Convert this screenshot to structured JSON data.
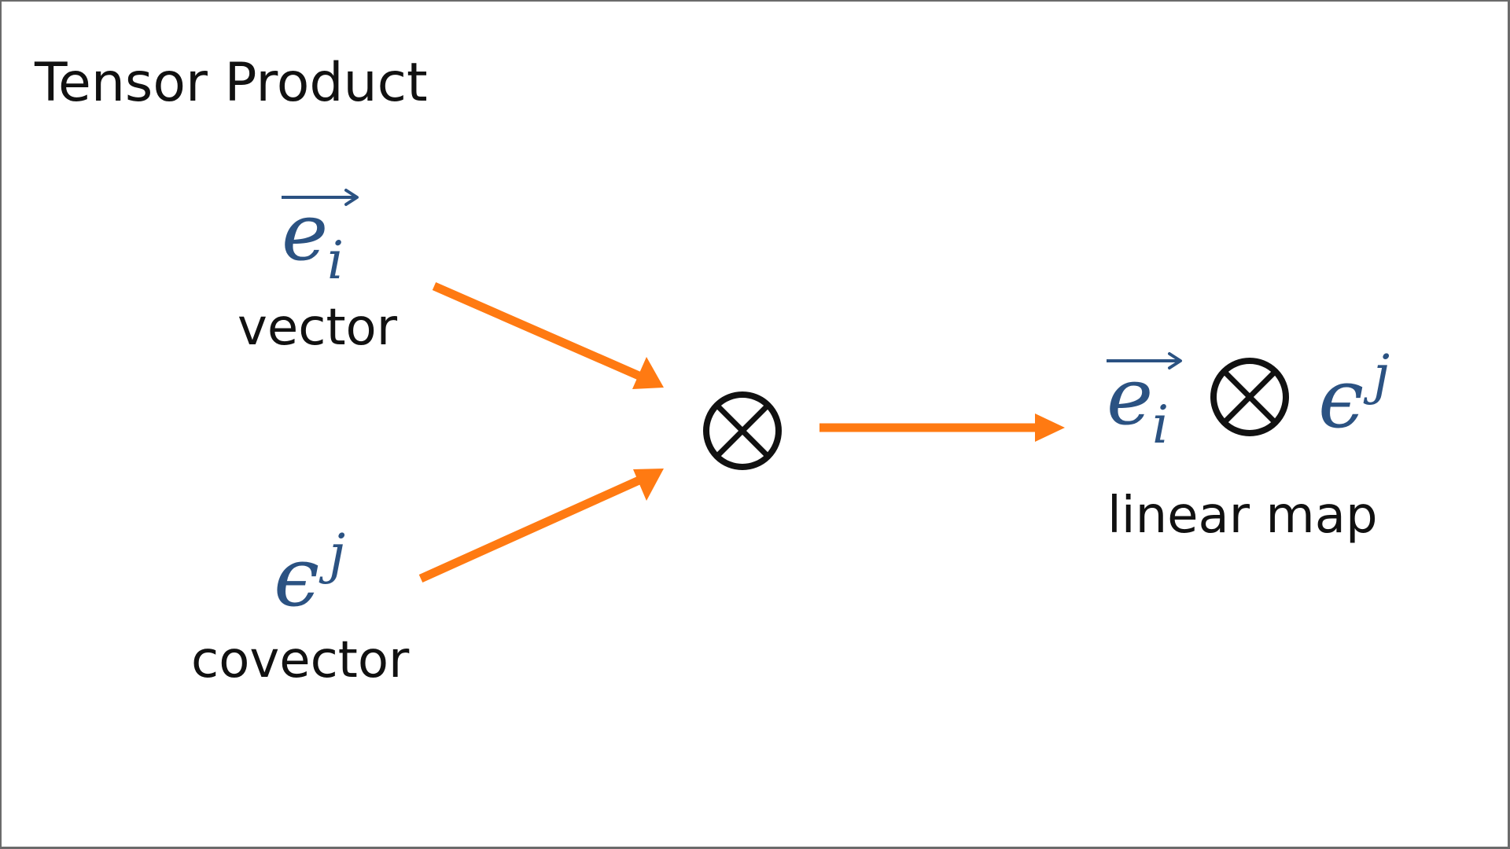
{
  "title": "Tensor Product",
  "vector": {
    "symbol": "e",
    "index": "i",
    "label": "vector"
  },
  "covector": {
    "symbol": "ϵ",
    "index": "j",
    "label": "covector"
  },
  "operator_symbol": "⊗",
  "result": {
    "vector_symbol": "e",
    "vector_index": "i",
    "covector_symbol": "ϵ",
    "covector_index": "j",
    "label": "linear map"
  },
  "colors": {
    "math": "#2b5282",
    "arrows": "#ff7a12",
    "text": "#111111"
  },
  "icons": {
    "operator": "circled-times-icon",
    "flow": "arrow-right-icon",
    "vector_hat": "vector-arrow-icon"
  }
}
